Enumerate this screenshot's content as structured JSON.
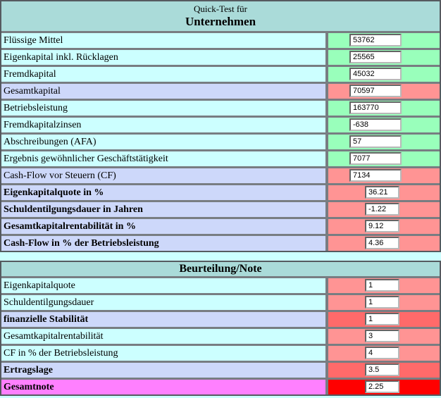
{
  "colors": {
    "page_background": "#CCFFFF",
    "header_teal": "#AADBD9",
    "label_cyan": "#CCFFFF",
    "label_lavender": "#CDD8FA",
    "label_magenta": "#FF80FF",
    "cell_green": "#99FFBB",
    "cell_salmon": "#FF9494",
    "cell_strong_salmon": "#FF6A6A",
    "cell_red": "#FF0000",
    "border_gray": "#787d82"
  },
  "table1": {
    "title_line1": "Quick-Test für",
    "title_line2": "Unternehmen",
    "rows": [
      {
        "label": "Flüssige Mittel",
        "value": "53762",
        "type": "input-green"
      },
      {
        "label": "Eigenkapital inkl. Rücklagen",
        "value": "25565",
        "type": "input-green"
      },
      {
        "label": "Fremdkapital",
        "value": "45032",
        "type": "input-green"
      },
      {
        "label": "Gesamtkapital",
        "value": "70597",
        "type": "calc-sum"
      },
      {
        "label": "Betriebsleistung",
        "value": "163770",
        "type": "input-green"
      },
      {
        "label": "Fremdkapitalzinsen",
        "value": "-638",
        "type": "input-green"
      },
      {
        "label": "Abschreibungen (AFA)",
        "value": "57",
        "type": "input-green"
      },
      {
        "label": "Ergebnis gewöhnlicher Geschäftstätigkeit",
        "value": "7077",
        "type": "input-green"
      },
      {
        "label": "Cash-Flow vor Steuern (CF)",
        "value": "7134",
        "type": "calc-sum"
      },
      {
        "label": "Eigenkapitalquote in %",
        "value": "36.21",
        "type": "ratio"
      },
      {
        "label": "Schuldentilgungsdauer in Jahren",
        "value": "-1.22",
        "type": "ratio"
      },
      {
        "label": "Gesamtkapitalrentabilität in %",
        "value": "9.12",
        "type": "ratio"
      },
      {
        "label": "Cash-Flow in % der Betriebsleistung",
        "value": "4.36",
        "type": "ratio"
      }
    ]
  },
  "table2": {
    "title": "Beurteilung/Note",
    "rows": [
      {
        "label": "Eigenkapitalquote",
        "value": "1",
        "type": "note"
      },
      {
        "label": "Schuldentilgungsdauer",
        "value": "1",
        "type": "note"
      },
      {
        "label": "finanzielle Stabilität",
        "value": "1",
        "type": "subtotal"
      },
      {
        "label": "Gesamtkapitalrentabilität",
        "value": "3",
        "type": "note"
      },
      {
        "label": "CF in % der Betriebsleistung",
        "value": "4",
        "type": "note"
      },
      {
        "label": "Ertragslage",
        "value": "3.5",
        "type": "subtotal"
      },
      {
        "label": "Gesamtnote",
        "value": "2.25",
        "type": "total"
      }
    ]
  }
}
